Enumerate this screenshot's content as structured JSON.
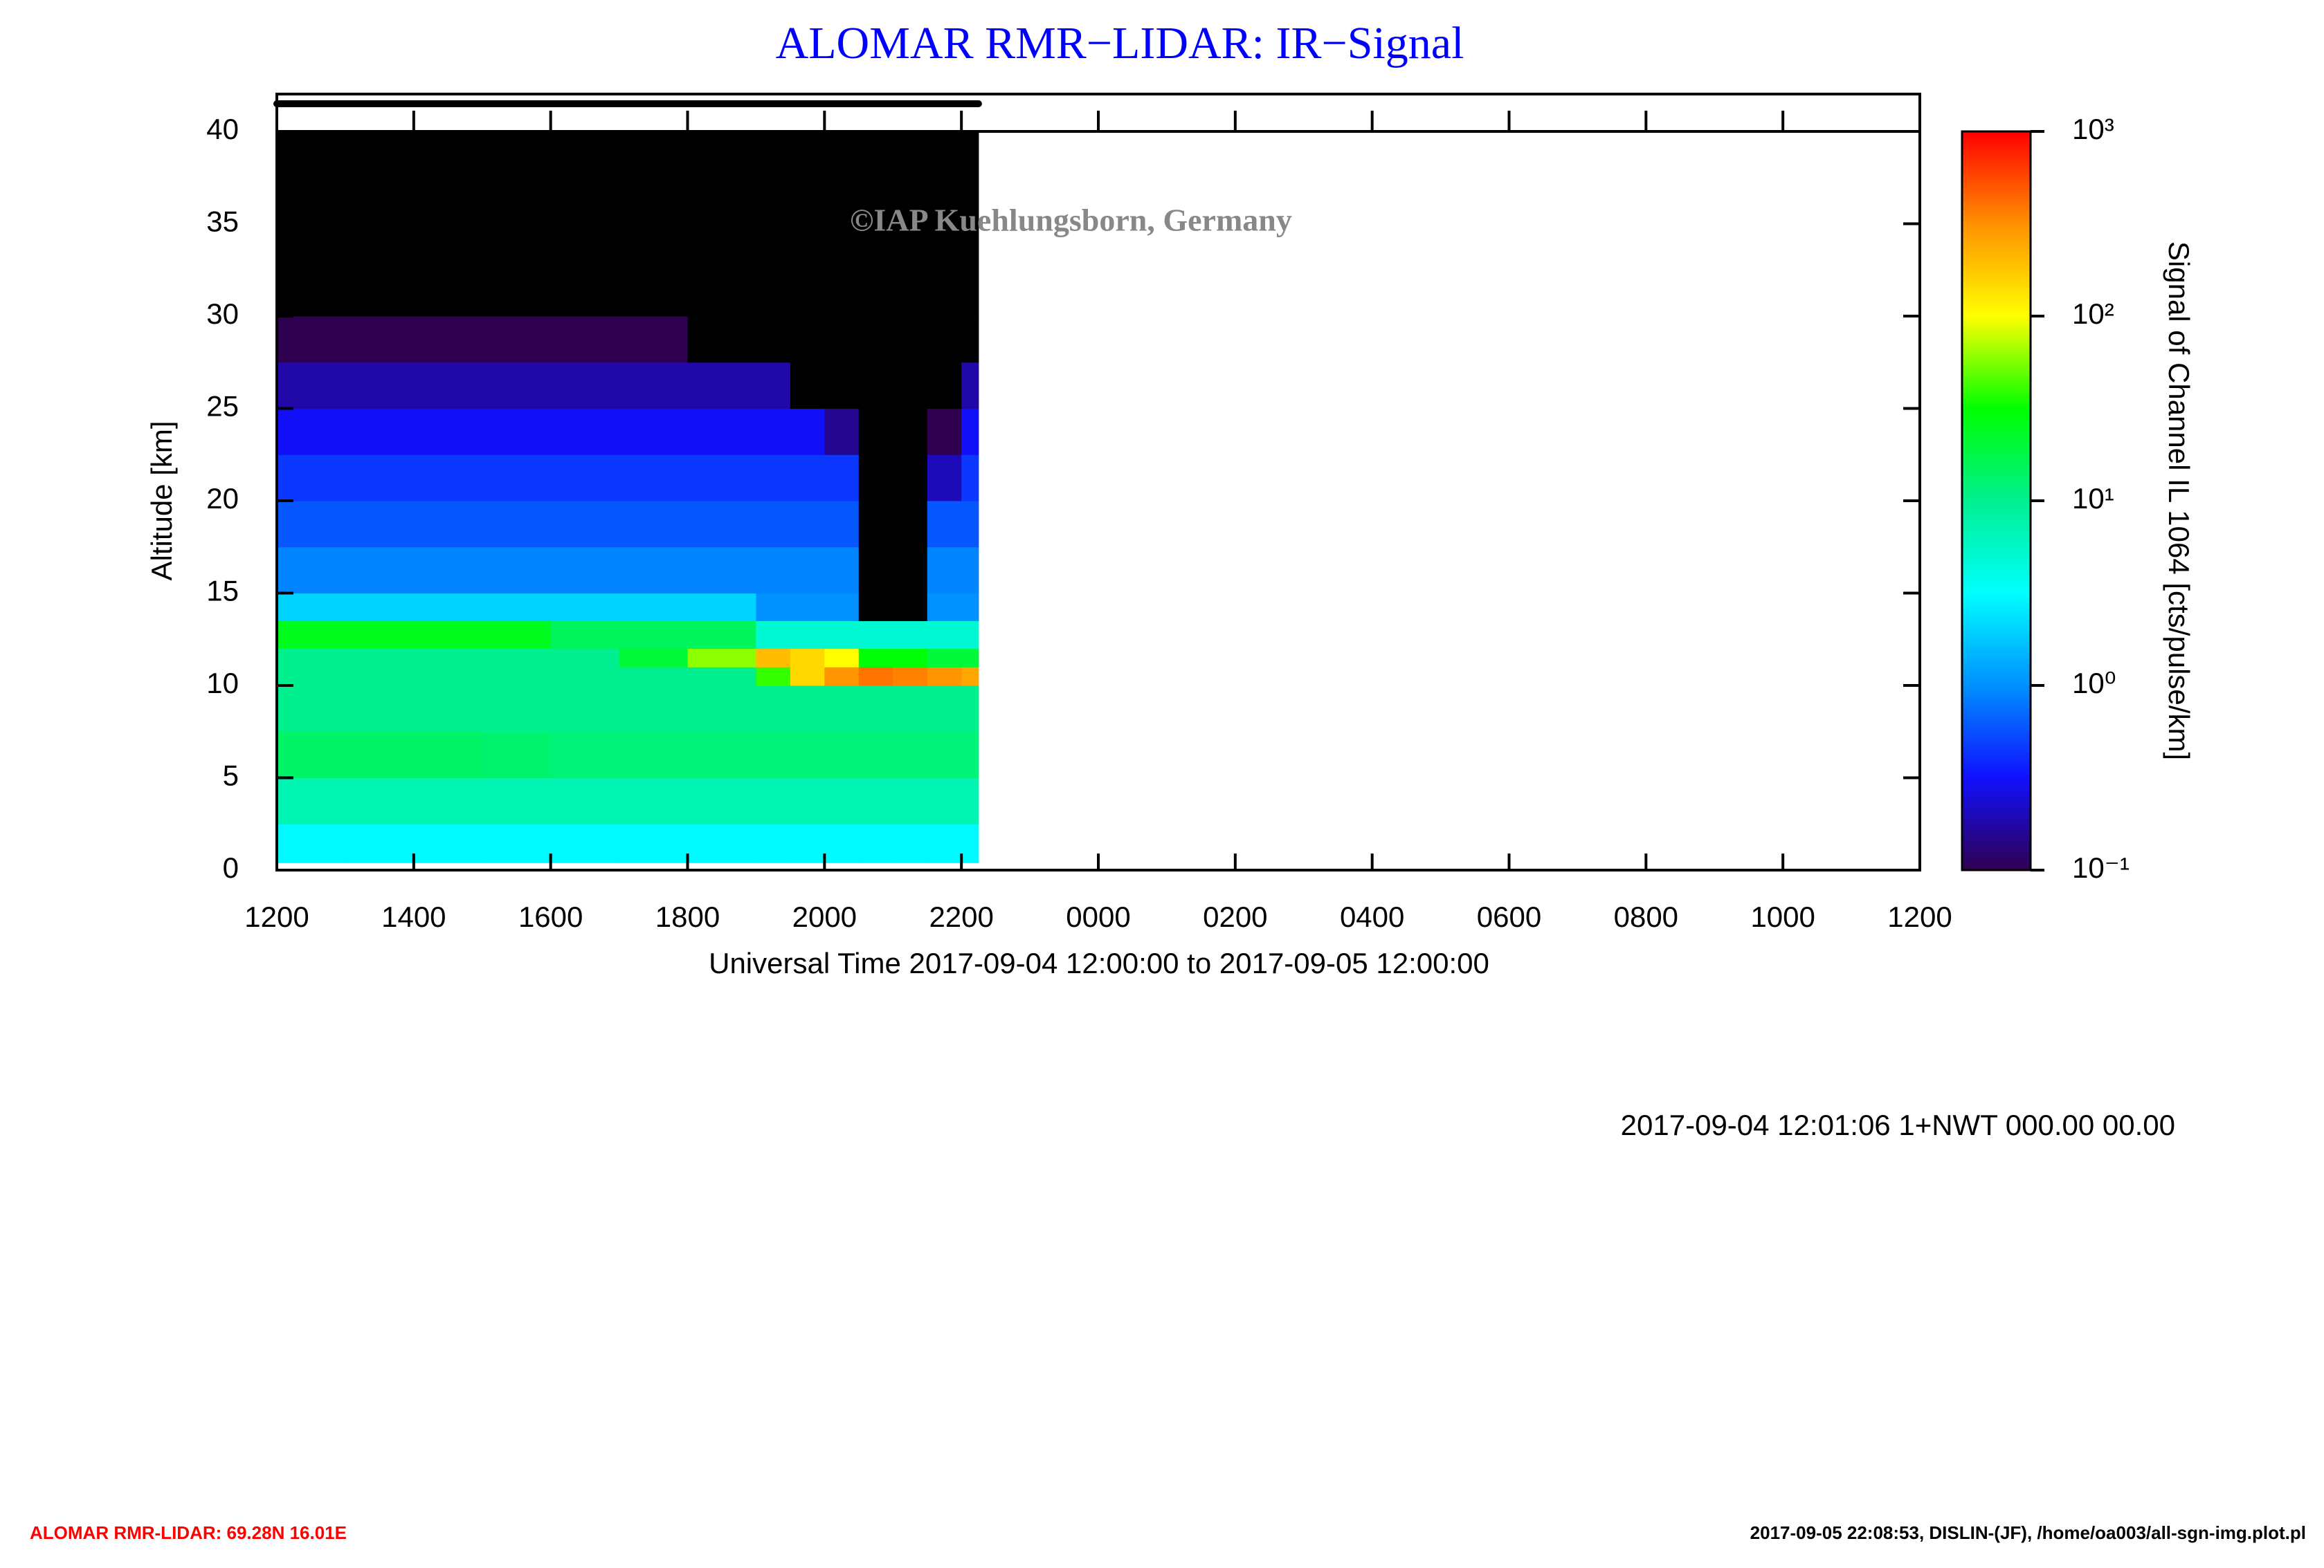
{
  "chart_data": {
    "type": "heatmap",
    "title": "ALOMAR RMR−LIDAR: IR−Signal",
    "watermark": "©IAP Kuehlungsborn, Germany",
    "x_label": "Universal Time 2017-09-04 12:00:00 to 2017-09-05 12:00:00",
    "y_label": "Altitude [km]",
    "colorbar_label": "Signal of Channel IL 1064 [cts/pulse/km]",
    "info": "2017-09-04 12:01:06 1+NWT 000.00 00.00",
    "footer_left": "ALOMAR RMR-LIDAR: 69.28N 16.01E",
    "footer_right": "2017-09-05 22:08:53, DISLIN-(JF), /home/oa003/all-sgn-img.plot.pl",
    "xlim": [
      0,
      24
    ],
    "xticks": [
      {
        "value": 0,
        "label": "1200"
      },
      {
        "value": 2,
        "label": "1400"
      },
      {
        "value": 4,
        "label": "1600"
      },
      {
        "value": 6,
        "label": "1800"
      },
      {
        "value": 8,
        "label": "2000"
      },
      {
        "value": 10,
        "label": "2200"
      },
      {
        "value": 12,
        "label": "0000"
      },
      {
        "value": 14,
        "label": "0200"
      },
      {
        "value": 16,
        "label": "0400"
      },
      {
        "value": 18,
        "label": "0600"
      },
      {
        "value": 20,
        "label": "0800"
      },
      {
        "value": 22,
        "label": "1000"
      },
      {
        "value": 24,
        "label": "1200"
      }
    ],
    "ylim": [
      0,
      40
    ],
    "yticks": [
      0,
      5,
      10,
      15,
      20,
      25,
      30,
      35,
      40
    ],
    "clim": [
      0.1,
      1000
    ],
    "log_color_scale": true,
    "cticks": [
      {
        "value": 0.1,
        "label": "10⁻¹"
      },
      {
        "value": 1,
        "label": "10⁰"
      },
      {
        "value": 10,
        "label": "10¹"
      },
      {
        "value": 100,
        "label": "10²"
      },
      {
        "value": 1000,
        "label": "10³"
      }
    ],
    "colormap": [
      "#300050",
      "#1010ff",
      "#0090ff",
      "#00ffff",
      "#00f090",
      "#00ff00",
      "#ffff00",
      "#ff9000",
      "#ff0000"
    ],
    "under_color": "#000000",
    "coverage": [
      0,
      10.25
    ],
    "x_edges": [
      0,
      1,
      2,
      3,
      4,
      5,
      6,
      7,
      7.5,
      8,
      8.5,
      9,
      9.5,
      10,
      10.25
    ],
    "y_edges": [
      0.4,
      2.5,
      5,
      7.5,
      10,
      11,
      12,
      13.5,
      15,
      17.5,
      20,
      22.5,
      25,
      27.5,
      30,
      35,
      40
    ],
    "z": [
      [
        3,
        3,
        3,
        3,
        3,
        3,
        3,
        3,
        3,
        3,
        3,
        3,
        3,
        3
      ],
      [
        7,
        7,
        7,
        7,
        7,
        7,
        7,
        7,
        7,
        7,
        7,
        7,
        7,
        7
      ],
      [
        14,
        14,
        14,
        13,
        12,
        12,
        12,
        12,
        12,
        12,
        12,
        12,
        12,
        12
      ],
      [
        10,
        10,
        10,
        10,
        10,
        10,
        10,
        10,
        10,
        10,
        10,
        10,
        10,
        10
      ],
      [
        10,
        10,
        10,
        10,
        10,
        10,
        10,
        40,
        150,
        300,
        400,
        350,
        300,
        250
      ],
      [
        10,
        10,
        10,
        10,
        10,
        20,
        60,
        200,
        150,
        100,
        30,
        30,
        20,
        20
      ],
      [
        25,
        25,
        25,
        25,
        15,
        15,
        15,
        5,
        5,
        5,
        5,
        5,
        5,
        5
      ],
      [
        2,
        2,
        2,
        2,
        2,
        2,
        2,
        1,
        1,
        1,
        0.05,
        0.05,
        1,
        1
      ],
      [
        0.9,
        0.9,
        0.9,
        0.9,
        0.9,
        0.9,
        0.9,
        0.9,
        0.9,
        0.9,
        0.04,
        0.04,
        0.9,
        0.9
      ],
      [
        0.6,
        0.6,
        0.6,
        0.6,
        0.6,
        0.6,
        0.6,
        0.6,
        0.6,
        0.6,
        0.03,
        0.03,
        0.6,
        0.6
      ],
      [
        0.45,
        0.45,
        0.45,
        0.45,
        0.45,
        0.45,
        0.45,
        0.45,
        0.45,
        0.45,
        0.03,
        0.03,
        0.2,
        0.45
      ],
      [
        0.3,
        0.3,
        0.3,
        0.3,
        0.3,
        0.3,
        0.3,
        0.3,
        0.3,
        0.15,
        0.03,
        0.03,
        0.1,
        0.3
      ],
      [
        0.18,
        0.18,
        0.18,
        0.18,
        0.18,
        0.18,
        0.18,
        0.18,
        0.05,
        0.05,
        0.05,
        0.05,
        0.05,
        0.18
      ],
      [
        0.1,
        0.1,
        0.1,
        0.1,
        0.1,
        0.1,
        0.06,
        0.06,
        0.06,
        0.06,
        0.06,
        0.06,
        0.06,
        0.06
      ],
      [
        0.04,
        0.04,
        0.04,
        0.04,
        0.04,
        0.04,
        0.04,
        0.04,
        0.04,
        0.04,
        0.04,
        0.04,
        0.04,
        0.04
      ],
      [
        0.03,
        0.03,
        0.03,
        0.03,
        0.03,
        0.03,
        0.03,
        0.03,
        0.03,
        0.03,
        0.03,
        0.03,
        0.03,
        0.03
      ]
    ]
  }
}
